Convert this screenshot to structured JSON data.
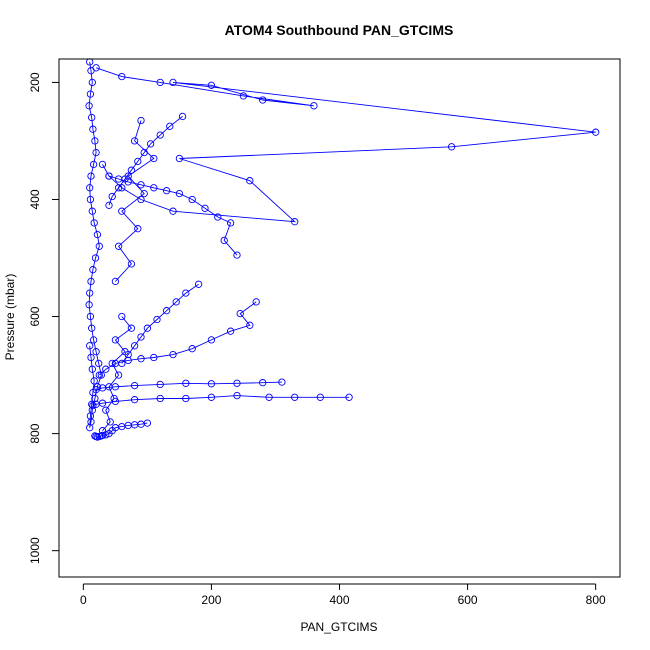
{
  "chart_data": {
    "type": "scatter",
    "title": "ATOM4 Southbound PAN_GTCIMS",
    "xlabel": "PAN_GTCIMS",
    "ylabel": "Pressure (mbar)",
    "xlim": [
      -38,
      838
    ],
    "ylim": [
      1045,
      160
    ],
    "y_reversed": true,
    "x_ticks": [
      0,
      200,
      400,
      600,
      800
    ],
    "y_ticks": [
      200,
      400,
      600,
      800,
      1000
    ],
    "x_tick_labels": [
      "0",
      "200",
      "400",
      "600",
      "800"
    ],
    "y_tick_labels": [
      "200",
      "400",
      "600",
      "800",
      "1000"
    ],
    "grid": false,
    "legend": "none",
    "series_color": "#0000ff",
    "marker": "open-circle",
    "connected": true,
    "series": [
      {
        "x": [
          10,
          12,
          14,
          11,
          9,
          13,
          15,
          18,
          20,
          16,
          12,
          10,
          11,
          14,
          17,
          22,
          25,
          19,
          15,
          12,
          10,
          9,
          11,
          13,
          16,
          20,
          24,
          28,
          22,
          18,
          14,
          12,
          10,
          11,
          13,
          15,
          17,
          14,
          12,
          10
        ],
        "y": [
          165,
          180,
          200,
          220,
          240,
          260,
          280,
          300,
          320,
          340,
          360,
          380,
          400,
          420,
          440,
          460,
          480,
          500,
          520,
          540,
          560,
          580,
          600,
          620,
          640,
          660,
          680,
          700,
          720,
          740,
          760,
          780,
          790,
          770,
          750,
          730,
          710,
          690,
          670,
          650
        ]
      },
      {
        "x": [
          20,
          60,
          120,
          250,
          360,
          280,
          200,
          140,
          800,
          575,
          150,
          260,
          330,
          140,
          90,
          60,
          40,
          30
        ],
        "y": [
          175,
          190,
          200,
          223,
          240,
          230,
          205,
          200,
          285,
          310,
          330,
          368,
          438,
          420,
          400,
          380,
          360,
          340
        ]
      },
      {
        "x": [
          415,
          370,
          330,
          290,
          240,
          200,
          160,
          120,
          80,
          50,
          30,
          20,
          15
        ],
        "y": [
          738,
          738,
          738,
          738,
          735,
          738,
          740,
          740,
          742,
          745,
          748,
          750,
          752
        ]
      },
      {
        "x": [
          310,
          280,
          240,
          200,
          160,
          120,
          80,
          50,
          30,
          20
        ],
        "y": [
          712,
          713,
          714,
          715,
          714,
          716,
          718,
          720,
          722,
          725
        ]
      },
      {
        "x": [
          270,
          245,
          260,
          230,
          200,
          170,
          140,
          110,
          90,
          70,
          50,
          35,
          25
        ],
        "y": [
          575,
          595,
          615,
          625,
          640,
          655,
          665,
          670,
          672,
          675,
          680,
          690,
          700
        ]
      },
      {
        "x": [
          240,
          220,
          230,
          210,
          190,
          170,
          150,
          130,
          110,
          90,
          70,
          55,
          40
        ],
        "y": [
          495,
          470,
          440,
          430,
          415,
          400,
          390,
          385,
          380,
          375,
          370,
          365,
          360
        ]
      },
      {
        "x": [
          100,
          90,
          80,
          70,
          60,
          50,
          45,
          40,
          35,
          30,
          28,
          25,
          22,
          20,
          18
        ],
        "y": [
          782,
          784,
          785,
          786,
          788,
          790,
          795,
          800,
          802,
          803,
          804,
          805,
          806,
          805,
          804
        ]
      },
      {
        "x": [
          155,
          135,
          120,
          105,
          95,
          85,
          75,
          65,
          55,
          45,
          40
        ],
        "y": [
          258,
          275,
          290,
          305,
          320,
          335,
          350,
          365,
          380,
          395,
          410
        ]
      },
      {
        "x": [
          180,
          160,
          145,
          130,
          115,
          100,
          90,
          80,
          70,
          60
        ],
        "y": [
          545,
          560,
          575,
          590,
          605,
          620,
          635,
          650,
          665,
          680
        ]
      },
      {
        "x": [
          90,
          80,
          110,
          70,
          95,
          60,
          85,
          55,
          75,
          50
        ],
        "y": [
          265,
          300,
          330,
          360,
          390,
          420,
          450,
          480,
          510,
          540
        ]
      },
      {
        "x": [
          60,
          75,
          50,
          65,
          45,
          55,
          40,
          48,
          35,
          42,
          30
        ],
        "y": [
          600,
          620,
          640,
          660,
          680,
          700,
          720,
          740,
          760,
          780,
          795
        ]
      }
    ]
  }
}
